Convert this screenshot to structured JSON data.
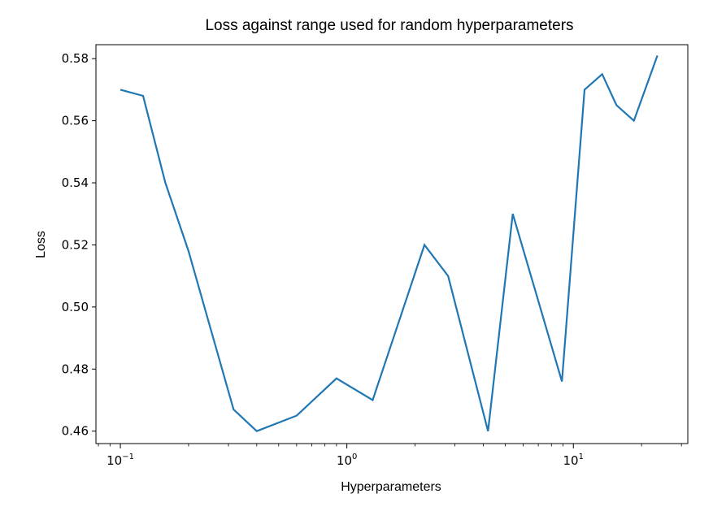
{
  "chart_data": {
    "type": "line",
    "title": "Loss against range used for random hyperparameters",
    "xlabel": "Hyperparameters",
    "ylabel": "Loss",
    "xscale": "log",
    "xlim": [
      0.078,
      32
    ],
    "ylim": [
      0.456,
      0.5845
    ],
    "grid": false,
    "legend": "none",
    "line_color": "#1f77b4",
    "xticks": [
      {
        "value": 0.1,
        "base": "10",
        "exp": "−1"
      },
      {
        "value": 1,
        "base": "10",
        "exp": "0"
      },
      {
        "value": 10,
        "base": "10",
        "exp": "1"
      }
    ],
    "yticks": [
      0.46,
      0.48,
      0.5,
      0.52,
      0.54,
      0.56,
      0.58
    ],
    "ytick_labels": [
      "0.46",
      "0.48",
      "0.50",
      "0.52",
      "0.54",
      "0.56",
      "0.58"
    ],
    "series": [
      {
        "x": [
          0.1,
          0.126,
          0.158,
          0.2,
          0.316,
          0.4,
          0.6,
          0.9,
          1.3,
          2.2,
          2.8,
          4.2,
          5.4,
          8.9,
          11.2,
          13.4,
          15.5,
          18.5,
          23.5
        ],
        "y": [
          0.57,
          0.568,
          0.54,
          0.518,
          0.467,
          0.46,
          0.465,
          0.477,
          0.47,
          0.52,
          0.51,
          0.46,
          0.53,
          0.476,
          0.57,
          0.575,
          0.565,
          0.56,
          0.581
        ]
      }
    ]
  }
}
